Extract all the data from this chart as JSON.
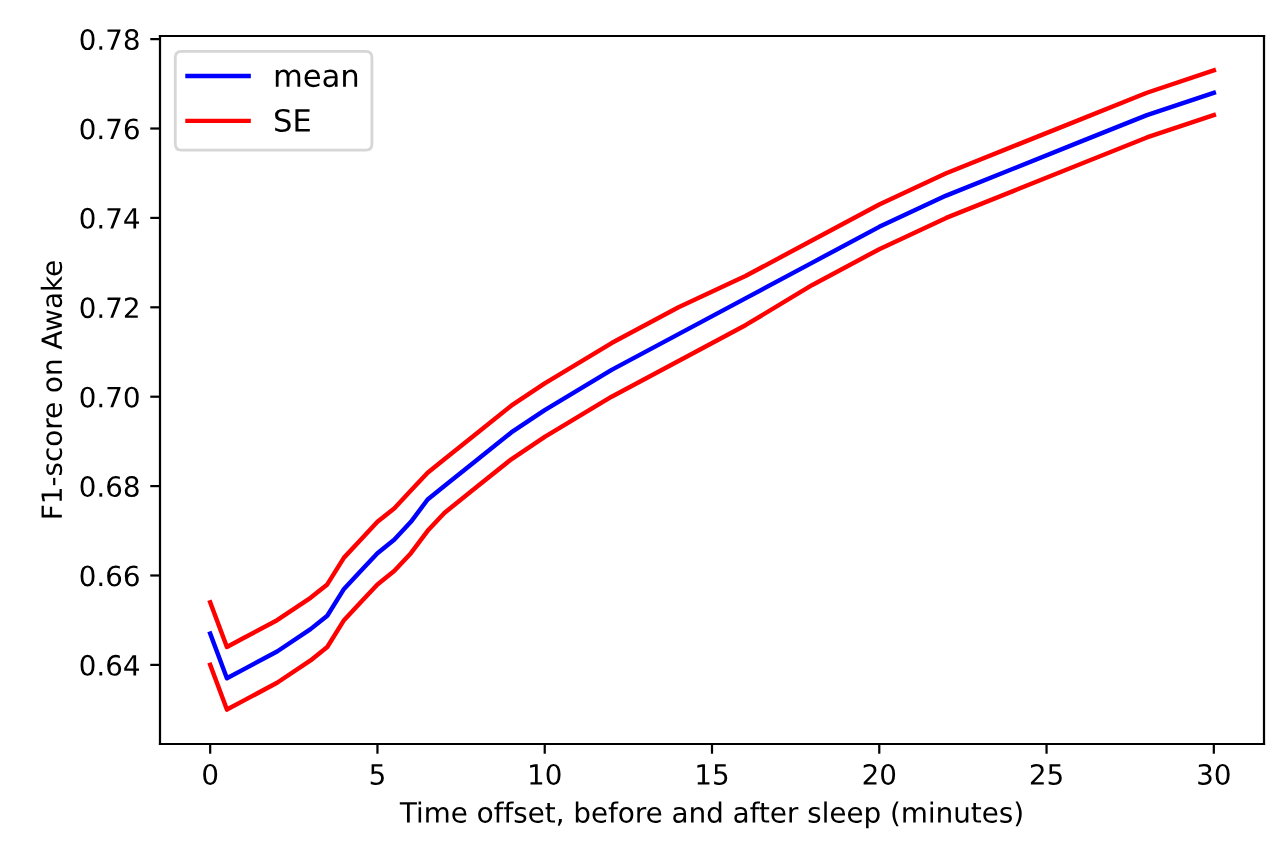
{
  "chart_data": {
    "type": "line",
    "xlabel": "Time offset, before and after sleep (minutes)",
    "ylabel": "F1-score on Awake",
    "x": [
      0,
      0.5,
      1,
      2,
      3,
      3.5,
      4,
      4.5,
      5,
      5.5,
      6,
      6.5,
      7,
      8,
      9,
      10,
      12,
      14,
      16,
      18,
      20,
      22,
      24,
      26,
      28,
      30
    ],
    "series": [
      {
        "name": "mean",
        "color": "#0000ff",
        "values": [
          0.647,
          0.637,
          0.639,
          0.643,
          0.648,
          0.651,
          0.657,
          0.661,
          0.665,
          0.668,
          0.672,
          0.677,
          0.68,
          0.686,
          0.692,
          0.697,
          0.706,
          0.714,
          0.722,
          0.73,
          0.738,
          0.745,
          0.751,
          0.757,
          0.763,
          0.768
        ]
      },
      {
        "name": "SE",
        "color": "#ff0000",
        "values": [
          0.654,
          0.644,
          0.646,
          0.65,
          0.655,
          0.658,
          0.664,
          0.668,
          0.672,
          0.675,
          0.679,
          0.683,
          0.686,
          0.692,
          0.698,
          0.703,
          0.712,
          0.72,
          0.727,
          0.735,
          0.743,
          0.75,
          0.756,
          0.762,
          0.768,
          0.773
        ]
      },
      {
        "color": "#ff0000",
        "values": [
          0.64,
          0.63,
          0.632,
          0.636,
          0.641,
          0.644,
          0.65,
          0.654,
          0.658,
          0.661,
          0.665,
          0.67,
          0.674,
          0.68,
          0.686,
          0.691,
          0.7,
          0.708,
          0.716,
          0.725,
          0.733,
          0.74,
          0.746,
          0.752,
          0.758,
          0.763
        ]
      }
    ],
    "xlim": [
      -1.5,
      31.5
    ],
    "xticks": [
      0,
      5,
      10,
      15,
      20,
      25,
      30
    ],
    "ylim": [
      0.6223,
      0.7807
    ],
    "yticks": [
      {
        "value": 0.64,
        "label": "0.64"
      },
      {
        "value": 0.66,
        "label": "0.66"
      },
      {
        "value": 0.68,
        "label": "0.68"
      },
      {
        "value": 0.7,
        "label": "0.70"
      },
      {
        "value": 0.72,
        "label": "0.72"
      },
      {
        "value": 0.74,
        "label": "0.74"
      },
      {
        "value": 0.76,
        "label": "0.76"
      },
      {
        "value": 0.78,
        "label": "0.78"
      }
    ],
    "legend": "top left",
    "grid": false,
    "marker": "none",
    "line_style": "solid"
  }
}
